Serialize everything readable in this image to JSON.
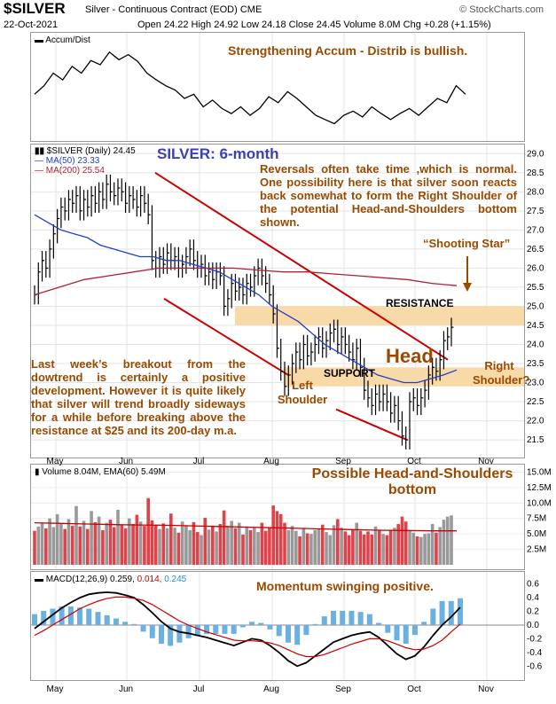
{
  "header": {
    "symbol": "$SILVER",
    "subtitle": "Silver - Continuous Contract (EOD)",
    "exchange": "CME",
    "date": "22-Oct-2021",
    "ohlc": "Open 24.22  High 24.92  Low 24.18  Close 24.45  Volume 8.0M  Chg +0.28 (+1.15%)",
    "brand": "© StockCharts.com"
  },
  "colors": {
    "accent": "#9a4a00",
    "ma50": "#1f3fd1",
    "ma200": "#b0203a",
    "trend": "#cc0000",
    "band": "#f8d9a8",
    "title": "#3b3fb7"
  },
  "accdist": {
    "label": "Accum/Dist",
    "note": "Strengthening Accum - Distrib is bullish."
  },
  "price": {
    "label": "$SILVER (Daily) 24.45",
    "ma50": "MA(50) 23.33",
    "ma200": "MA(200) 25.54",
    "title": "SILVER: 6-month",
    "note1": "Reversals often take time ,which is normal. One possibility here is that silver soon reacts back somewhat to form the Right Shoulder of the potential Head-and-Shoulders bottom shown.",
    "shooting_star": "“Shooting Star”",
    "resistance": "RESISTANCE",
    "support": "SUPPORT",
    "head": "Head",
    "left_shoulder": "Left Shoulder",
    "right_shoulder": "Right Shoulder?",
    "note2": "Last week’s breakout from the dowtrend is certainly a positive development. However it is quite likely that silver will trend broadly sideways for a while before breaking above the resistance at $25 and its 200-day m.a."
  },
  "volume": {
    "label": "Volume 8.04M, EMA(60) 5.49M",
    "note": "Possible Head-and-Shoulders bottom"
  },
  "macd": {
    "label": "MACD(12,26,9) 0.259, 0.014, 0.245",
    "label_a": "MACD(12,26,9) 0.259,",
    "label_b": "0.014,",
    "label_c": "0.245",
    "note": "Momentum swinging positive."
  },
  "chart_data": {
    "type": "line",
    "months": [
      "May",
      "Jun",
      "Jul",
      "Aug",
      "Sep",
      "Oct",
      "Nov"
    ],
    "price_ticks": [
      21.5,
      22.0,
      22.5,
      23.0,
      23.5,
      24.0,
      24.5,
      25.0,
      25.5,
      26.0,
      26.5,
      27.0,
      27.5,
      28.0,
      28.5,
      29.0
    ],
    "price_ylim": [
      21.2,
      29.1
    ],
    "volume_ticks": [
      "2.5M",
      "5.0M",
      "7.5M",
      "10.0M",
      "12.5M",
      "15.0M"
    ],
    "volume_ylim": [
      0,
      15.5
    ],
    "macd_ticks": [
      -0.6,
      -0.4,
      -0.2,
      0.0,
      0.2,
      0.4,
      0.6
    ],
    "macd_ylim": [
      -0.7,
      0.7
    ],
    "resistance_band": [
      24.5,
      25.0
    ],
    "support_band": [
      22.9,
      23.4
    ],
    "price_close": [
      25.3,
      25.9,
      26.2,
      26.0,
      26.5,
      26.9,
      27.3,
      27.6,
      27.5,
      27.8,
      27.7,
      27.9,
      27.5,
      27.8,
      27.6,
      27.9,
      27.7,
      28.0,
      27.8,
      28.2,
      28.0,
      27.9,
      28.1,
      28.0,
      27.7,
      27.9,
      27.8,
      27.6,
      27.9,
      27.7,
      27.4,
      26.2,
      26.0,
      26.3,
      26.1,
      26.4,
      26.2,
      26.3,
      26.0,
      26.1,
      26.3,
      26.5,
      26.2,
      26.0,
      26.1,
      25.8,
      25.9,
      25.7,
      25.9,
      25.8,
      25.0,
      25.2,
      25.6,
      25.4,
      25.5,
      25.3,
      25.6,
      25.5,
      25.8,
      26.0,
      25.8,
      25.6,
      25.3,
      24.8,
      23.9,
      23.3,
      22.9,
      23.2,
      23.5,
      23.8,
      23.6,
      24.0,
      23.7,
      23.8,
      24.0,
      24.2,
      23.9,
      24.1,
      24.3,
      24.4,
      24.0,
      24.2,
      24.0,
      23.8,
      23.6,
      23.9,
      23.4,
      22.8,
      22.6,
      22.4,
      22.7,
      22.5,
      22.7,
      22.5,
      22.2,
      22.4,
      22.0,
      21.6,
      21.5,
      22.5,
      22.6,
      22.4,
      22.6,
      22.8,
      23.2,
      23.4,
      23.3,
      23.6,
      24.1,
      24.2,
      24.45
    ],
    "ma50": [
      27.4,
      27.2,
      27.0,
      26.9,
      26.8,
      26.6,
      26.5,
      26.4,
      26.3,
      26.3,
      26.2,
      26.2,
      26.1,
      26.0,
      25.9,
      25.7,
      25.5,
      25.3,
      25.0,
      24.8,
      24.6,
      24.3,
      24.0,
      23.8,
      23.6,
      23.4,
      23.2,
      23.1,
      23.0,
      23.0,
      23.1,
      23.2,
      23.33
    ],
    "ma200": [
      25.3,
      25.5,
      25.7,
      25.8,
      25.9,
      26.0,
      26.0,
      26.0,
      26.0,
      25.95,
      25.9,
      25.9,
      25.85,
      25.8,
      25.75,
      25.7,
      25.6,
      25.54
    ],
    "accdist": [
      0.45,
      0.55,
      0.7,
      0.62,
      0.78,
      0.7,
      0.85,
      0.8,
      0.95,
      0.86,
      0.92,
      0.84,
      0.7,
      0.62,
      0.55,
      0.5,
      0.4,
      0.45,
      0.3,
      0.38,
      0.28,
      0.22,
      0.3,
      0.2,
      0.28,
      0.42,
      0.35,
      0.48,
      0.4,
      0.3,
      0.2,
      0.15,
      0.1,
      0.2,
      0.25,
      0.18,
      0.3,
      0.22,
      0.15,
      0.22,
      0.28,
      0.2,
      0.3,
      0.4,
      0.35,
      0.55,
      0.45
    ],
    "volume": [
      5.5,
      6.2,
      6.8,
      5.9,
      7.5,
      6.1,
      8.2,
      6.6,
      5.8,
      7.4,
      6.3,
      9.5,
      6.2,
      7.1,
      5.8,
      8.7,
      6.9,
      7.8,
      5.6,
      6.8,
      7.3,
      6.1,
      8.9,
      6.4,
      5.9,
      7.5,
      6.6,
      8.1,
      7.0,
      6.3,
      10.8,
      7.2,
      6.5,
      5.8,
      6.7,
      5.9,
      8.3,
      6.0,
      5.2,
      7.0,
      6.4,
      5.6,
      6.9,
      5.3,
      4.8,
      7.6,
      5.7,
      6.2,
      5.4,
      6.6,
      8.8,
      6.3,
      7.1,
      5.9,
      6.8,
      4.9,
      6.2,
      5.6,
      6.0,
      5.3,
      6.8,
      5.5,
      6.1,
      9.6,
      8.7,
      8.2,
      6.8,
      5.6,
      6.3,
      5.5,
      4.6,
      5.9,
      5.1,
      5.0,
      5.6,
      5.8,
      6.5,
      5.3,
      4.8,
      6.4,
      7.4,
      6.0,
      5.4,
      4.8,
      5.6,
      6.8,
      5.5,
      4.9,
      5.4,
      4.9,
      6.2,
      5.6,
      5.0,
      4.8,
      5.6,
      6.0,
      6.6,
      7.8,
      7.0,
      5.6,
      5.2,
      4.6,
      4.5,
      5.0,
      5.1,
      6.6,
      5.2,
      6.1,
      7.3,
      7.8,
      8.0
    ],
    "macd_line": [
      -0.05,
      0.05,
      0.15,
      0.25,
      0.33,
      0.4,
      0.45,
      0.47,
      0.48,
      0.47,
      0.44,
      0.4,
      0.3,
      0.18,
      0.05,
      -0.05,
      -0.1,
      -0.12,
      -0.15,
      -0.18,
      -0.22,
      -0.26,
      -0.3,
      -0.25,
      -0.2,
      -0.22,
      -0.3,
      -0.4,
      -0.52,
      -0.6,
      -0.55,
      -0.45,
      -0.35,
      -0.25,
      -0.2,
      -0.15,
      -0.12,
      -0.1,
      -0.18,
      -0.3,
      -0.42,
      -0.5,
      -0.45,
      -0.32,
      -0.15,
      0.0,
      0.12,
      0.259
    ],
    "macd_signal": [
      -0.15,
      -0.08,
      0.0,
      0.08,
      0.16,
      0.24,
      0.3,
      0.35,
      0.39,
      0.41,
      0.41,
      0.39,
      0.36,
      0.3,
      0.22,
      0.14,
      0.06,
      0.0,
      -0.05,
      -0.1,
      -0.14,
      -0.18,
      -0.22,
      -0.23,
      -0.23,
      -0.24,
      -0.26,
      -0.3,
      -0.36,
      -0.42,
      -0.46,
      -0.46,
      -0.43,
      -0.38,
      -0.33,
      -0.28,
      -0.24,
      -0.2,
      -0.2,
      -0.23,
      -0.28,
      -0.33,
      -0.36,
      -0.35,
      -0.3,
      -0.22,
      -0.1,
      0.014
    ]
  }
}
